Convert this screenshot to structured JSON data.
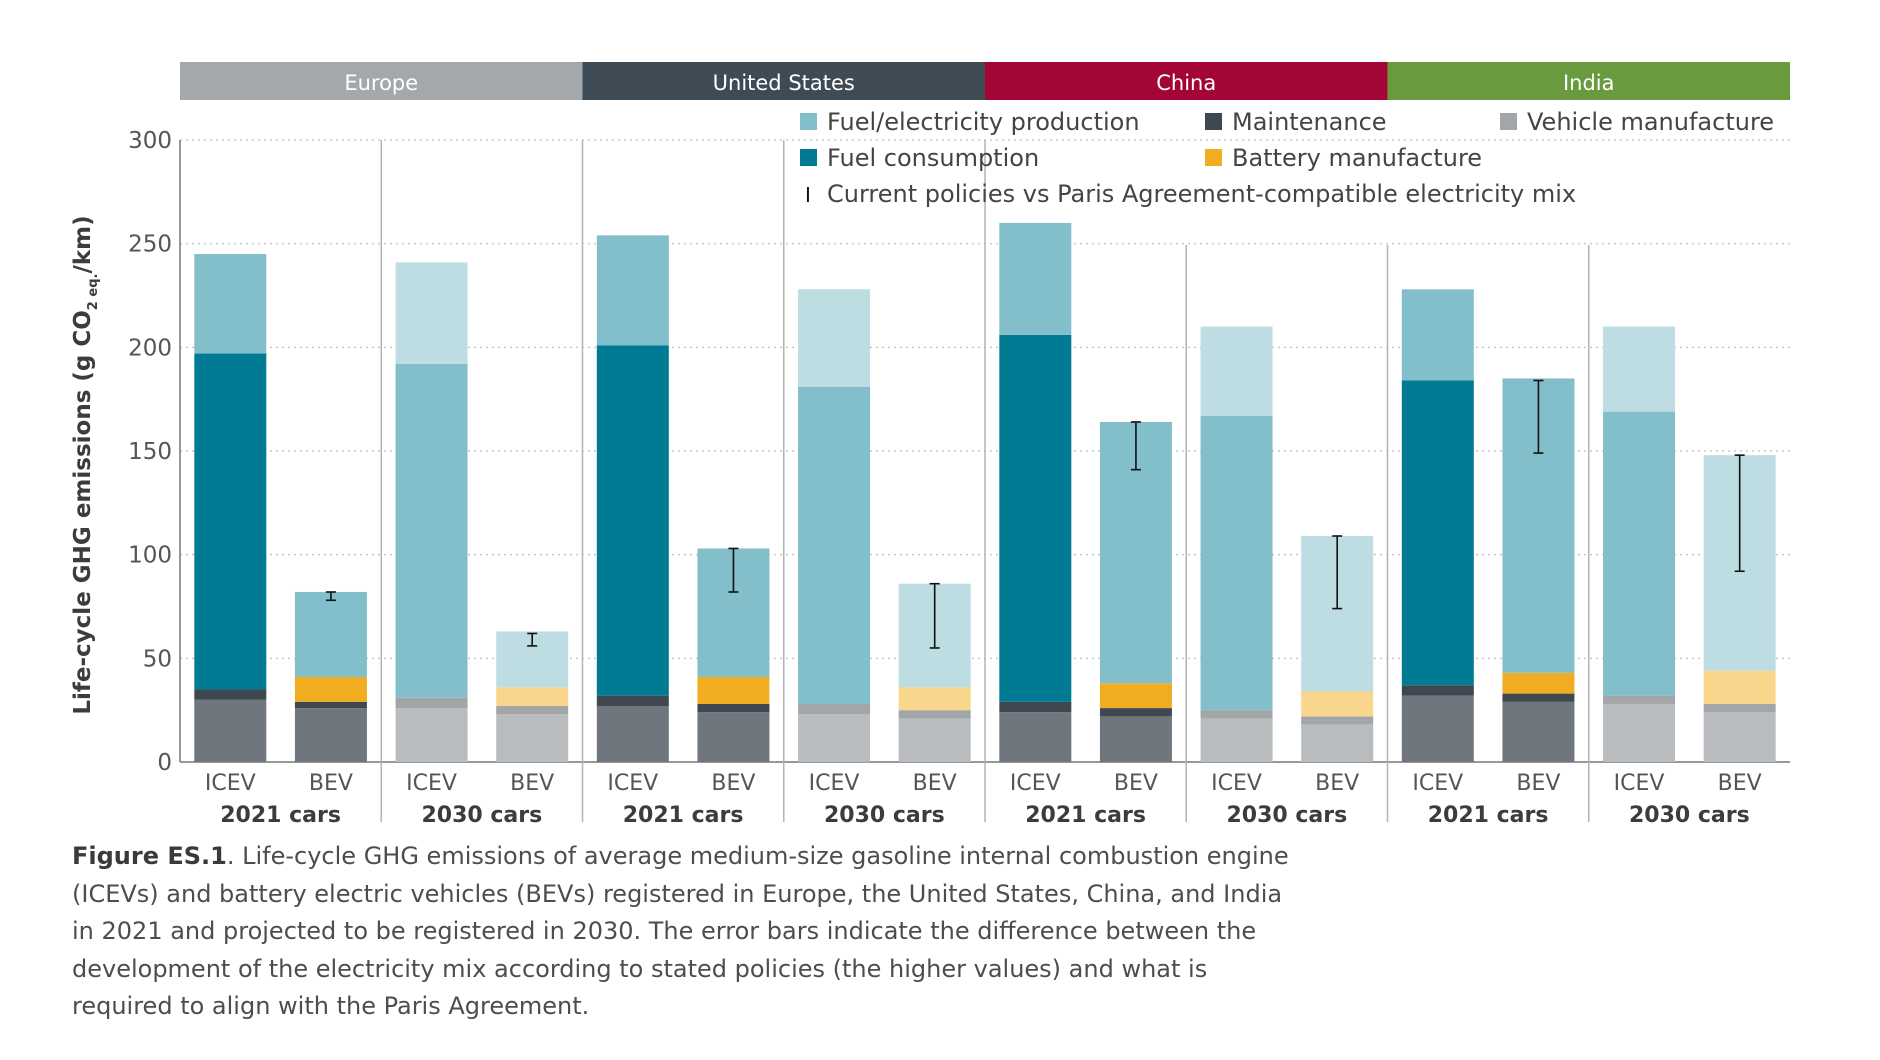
{
  "chart_data": {
    "type": "bar",
    "stacked": true,
    "ylabel_parts": {
      "main": "Life-cycle GHG emissions (g CO",
      "sub": "2 eq.",
      "end": "/km)"
    },
    "ylim": [
      0,
      300
    ],
    "yticks": [
      0,
      50,
      100,
      150,
      200,
      250,
      300
    ],
    "grid": "dotted horizontal",
    "legend_position": "top-right",
    "regions": [
      {
        "name": "Europe",
        "color": "#a3a8ac"
      },
      {
        "name": "United States",
        "color": "#3e4a54"
      },
      {
        "name": "China",
        "color": "#a30636"
      },
      {
        "name": "India",
        "color": "#6a9a3e"
      }
    ],
    "legend": [
      {
        "key": "fuel_prod",
        "label": "Fuel/electricity production",
        "color": "#83bfcb"
      },
      {
        "key": "maint",
        "label": "Maintenance",
        "color": "#3f4850"
      },
      {
        "key": "vehicle",
        "label": "Vehicle manufacture",
        "color": "#a3a6a9"
      },
      {
        "key": "fuel_cons",
        "label": "Fuel consumption",
        "color": "#007b93"
      },
      {
        "key": "battery",
        "label": "Battery manufacture",
        "color": "#f0ad22"
      },
      {
        "key": "errorbar",
        "label": "Current policies vs Paris Agreement-compatible electricity mix",
        "glyph": "I"
      }
    ],
    "colors": {
      "2021": {
        "vehicle": "#6f767d",
        "maint": "#3f4850",
        "battery": "#f0ad22",
        "fuel_cons": "#007b93",
        "fuel_prod": "#83bfcb"
      },
      "2030": {
        "vehicle": "#b9bcbf",
        "maint": "#a3a6a9",
        "battery": "#f8d68b",
        "fuel_cons": "#83bfcb",
        "fuel_prod": "#bedde3"
      }
    },
    "groups": [
      {
        "region": "Europe",
        "label": "2021 cars",
        "year": "2021",
        "bars": [
          {
            "label": "ICEV",
            "vehicle": 30,
            "maint": 5,
            "battery": 0,
            "fuel_cons": 162,
            "fuel_prod": 48,
            "err": null
          },
          {
            "label": "BEV",
            "vehicle": 26,
            "maint": 3,
            "battery": 12,
            "fuel_cons": 0,
            "fuel_prod": 41,
            "err": [
              78,
              82
            ]
          }
        ]
      },
      {
        "region": "Europe",
        "label": "2030 cars",
        "year": "2030",
        "bars": [
          {
            "label": "ICEV",
            "vehicle": 26,
            "maint": 5,
            "battery": 0,
            "fuel_cons": 161,
            "fuel_prod": 49,
            "err": null
          },
          {
            "label": "BEV",
            "vehicle": 23,
            "maint": 4,
            "battery": 9,
            "fuel_cons": 0,
            "fuel_prod": 27,
            "err": [
              56,
              62
            ]
          }
        ]
      },
      {
        "region": "United States",
        "label": "2021 cars",
        "year": "2021",
        "bars": [
          {
            "label": "ICEV",
            "vehicle": 27,
            "maint": 5,
            "battery": 0,
            "fuel_cons": 169,
            "fuel_prod": 53,
            "err": null
          },
          {
            "label": "BEV",
            "vehicle": 24,
            "maint": 4,
            "battery": 13,
            "fuel_cons": 0,
            "fuel_prod": 62,
            "err": [
              82,
              103
            ]
          }
        ]
      },
      {
        "region": "United States",
        "label": "2030 cars",
        "year": "2030",
        "bars": [
          {
            "label": "ICEV",
            "vehicle": 23,
            "maint": 5,
            "battery": 0,
            "fuel_cons": 153,
            "fuel_prod": 47,
            "err": null
          },
          {
            "label": "BEV",
            "vehicle": 21,
            "maint": 4,
            "battery": 11,
            "fuel_cons": 0,
            "fuel_prod": 50,
            "err": [
              55,
              86
            ]
          }
        ]
      },
      {
        "region": "China",
        "label": "2021 cars",
        "year": "2021",
        "bars": [
          {
            "label": "ICEV",
            "vehicle": 24,
            "maint": 5,
            "battery": 0,
            "fuel_cons": 177,
            "fuel_prod": 54,
            "err": null
          },
          {
            "label": "BEV",
            "vehicle": 22,
            "maint": 4,
            "battery": 12,
            "fuel_cons": 0,
            "fuel_prod": 126,
            "err": [
              141,
              164
            ]
          }
        ]
      },
      {
        "region": "China",
        "label": "2030 cars",
        "year": "2030",
        "bars": [
          {
            "label": "ICEV",
            "vehicle": 21,
            "maint": 4,
            "battery": 0,
            "fuel_cons": 142,
            "fuel_prod": 43,
            "err": null
          },
          {
            "label": "BEV",
            "vehicle": 18,
            "maint": 4,
            "battery": 12,
            "fuel_cons": 0,
            "fuel_prod": 75,
            "err": [
              74,
              109
            ]
          }
        ]
      },
      {
        "region": "India",
        "label": "2021 cars",
        "year": "2021",
        "bars": [
          {
            "label": "ICEV",
            "vehicle": 32,
            "maint": 5,
            "battery": 0,
            "fuel_cons": 147,
            "fuel_prod": 44,
            "err": null
          },
          {
            "label": "BEV",
            "vehicle": 29,
            "maint": 4,
            "battery": 10,
            "fuel_cons": 0,
            "fuel_prod": 142,
            "err": [
              149,
              184
            ]
          }
        ]
      },
      {
        "region": "India",
        "label": "2030 cars",
        "year": "2030",
        "bars": [
          {
            "label": "ICEV",
            "vehicle": 28,
            "maint": 4,
            "battery": 0,
            "fuel_cons": 137,
            "fuel_prod": 41,
            "err": null
          },
          {
            "label": "BEV",
            "vehicle": 24,
            "maint": 4,
            "battery": 16,
            "fuel_cons": 0,
            "fuel_prod": 104,
            "err": [
              92,
              148
            ]
          }
        ]
      }
    ]
  },
  "caption": {
    "label": "Figure ES.1",
    "text": ". Life-cycle GHG emissions of average medium-size gasoline internal combustion engine (ICEVs) and battery electric vehicles (BEVs) registered in Europe, the United States, China, and India in 2021 and projected to be registered in 2030. The error bars indicate the difference between the development of the electricity mix according to stated policies (the higher values) and what is required to align with the Paris Agreement."
  }
}
